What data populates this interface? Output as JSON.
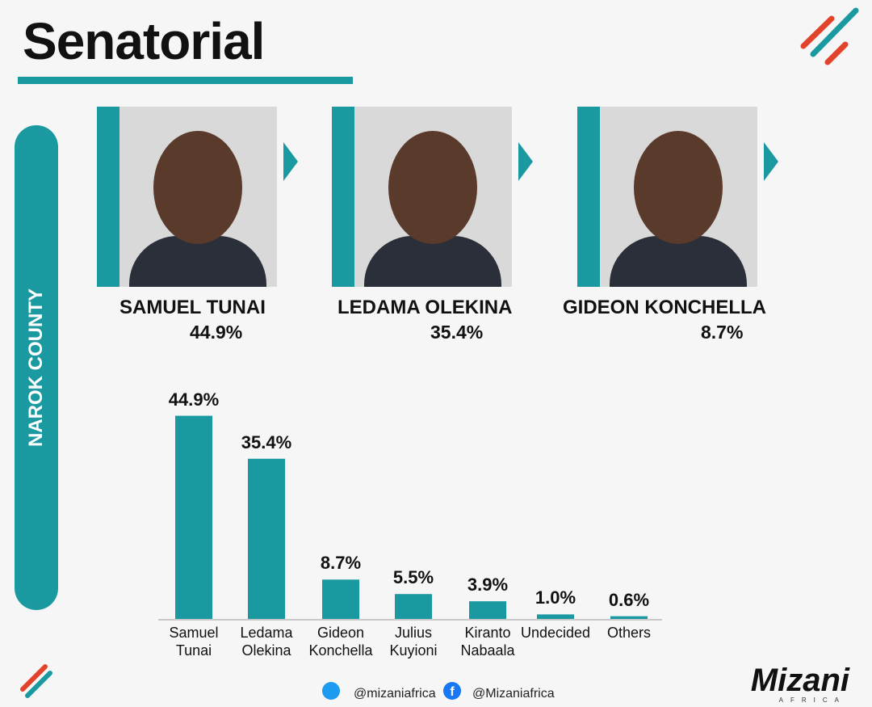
{
  "header": {
    "title": "Senatorial",
    "region": "NAROK COUNTY"
  },
  "cards": [
    {
      "name": "SAMUEL TUNAI",
      "percent": "44.9%"
    },
    {
      "name": "LEDAMA OLEKINA",
      "percent": "35.4%"
    },
    {
      "name": "GIDEON KONCHELLA",
      "percent": "8.7%"
    }
  ],
  "chart_data": {
    "type": "bar",
    "categories": [
      "Samuel Tunai",
      "Ledama Olekina",
      "Gideon Konchella",
      "Julius Kuyioni",
      "Kiranto Nabaala",
      "Undecided",
      "Others"
    ],
    "values": [
      44.9,
      35.4,
      8.7,
      5.5,
      3.9,
      1.0,
      0.6
    ],
    "value_labels": [
      "44.9%",
      "35.4%",
      "8.7%",
      "5.5%",
      "3.9%",
      "1.0%",
      "0.6%"
    ],
    "color": "#1a9aa0"
  },
  "footer": {
    "twitter": "@mizaniafrica",
    "facebook": "@Mizaniafrica",
    "logo": "Mizani",
    "logo_sub": "AFRICA"
  }
}
